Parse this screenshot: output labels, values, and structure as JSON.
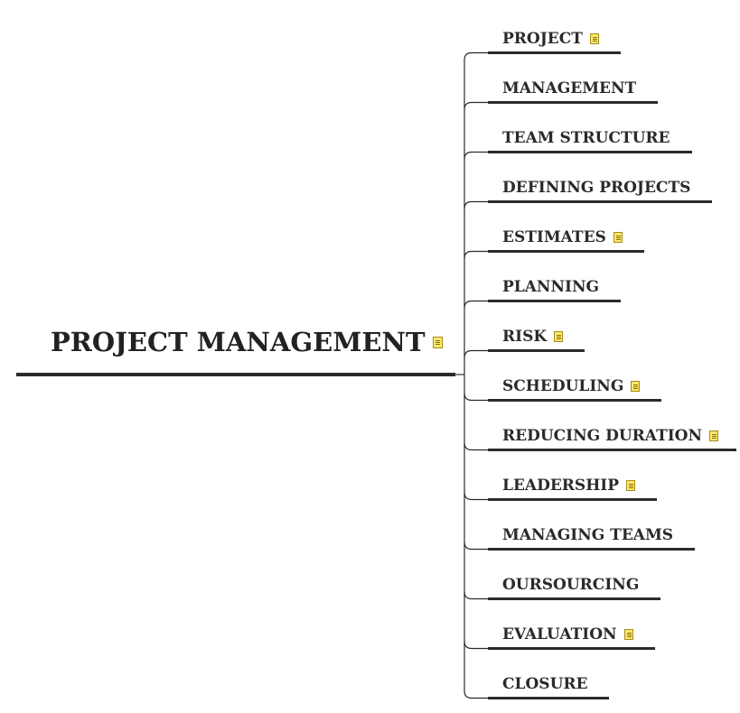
{
  "root": {
    "label": "PROJECT MANAGEMENT",
    "has_note": true
  },
  "branches": [
    {
      "label": "PROJECT",
      "has_note": true
    },
    {
      "label": "MANAGEMENT",
      "has_note": false
    },
    {
      "label": "TEAM STRUCTURE",
      "has_note": false
    },
    {
      "label": "DEFINING PROJECTS",
      "has_note": false
    },
    {
      "label": "ESTIMATES",
      "has_note": true
    },
    {
      "label": "PLANNING",
      "has_note": false
    },
    {
      "label": "RISK",
      "has_note": true
    },
    {
      "label": "SCHEDULING",
      "has_note": true
    },
    {
      "label": "REDUCING DURATION",
      "has_note": true
    },
    {
      "label": "LEADERSHIP",
      "has_note": true
    },
    {
      "label": "MANAGING TEAMS",
      "has_note": false
    },
    {
      "label": "OURSOURCING",
      "has_note": false
    },
    {
      "label": "EVALUATION",
      "has_note": true
    },
    {
      "label": "CLOSURE",
      "has_note": false
    }
  ],
  "colors": {
    "line": "#2b2b2b",
    "text": "#262626",
    "note_fill": "#fbe96a",
    "note_border": "#a88a1a"
  },
  "icons": {
    "note": "note-icon"
  }
}
